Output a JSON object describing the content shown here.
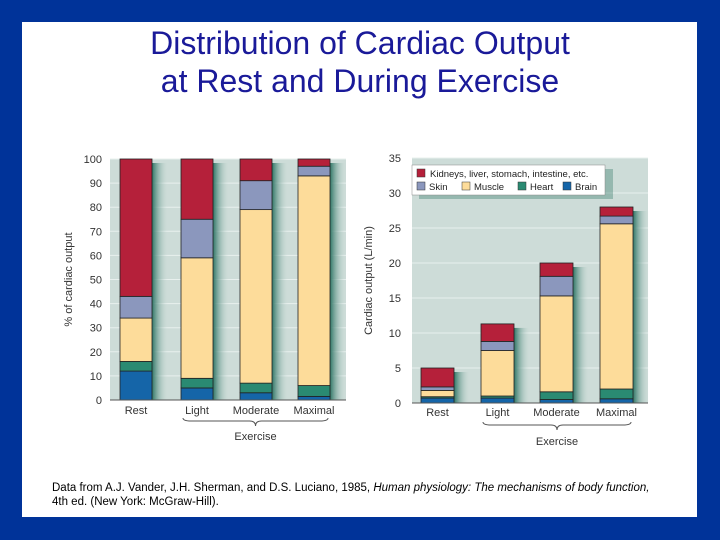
{
  "slide": {
    "title_line1": "Distribution of Cardiac Output",
    "title_line2": "at Rest and During Exercise",
    "caption_plain1": "Data from A.J. Vander, J.H. Sherman, and D.S. Luciano, 1985, ",
    "caption_italic1": "Human physiology: The mechanisms of body function,",
    "caption_plain2": " 4th ed. (New York: McGraw-Hill).",
    "border_color": "#003399",
    "title_color": "#1a1a99"
  },
  "chart_data": [
    {
      "type": "bar",
      "stacked": true,
      "ylabel": "% of cardiac output",
      "ylim": [
        0,
        100
      ],
      "yticks": [
        0,
        10,
        20,
        30,
        40,
        50,
        60,
        70,
        80,
        90,
        100
      ],
      "categories": [
        "Rest",
        "Light",
        "Moderate",
        "Maximal"
      ],
      "group_label": "Exercise",
      "series": [
        {
          "name": "Brain",
          "color": "#1565a8",
          "values": [
            12,
            5,
            3,
            1.5
          ]
        },
        {
          "name": "Heart",
          "color": "#2a8a72",
          "values": [
            4,
            4,
            4,
            4.5
          ]
        },
        {
          "name": "Muscle",
          "color": "#fddc9a",
          "values": [
            18,
            50,
            72,
            87
          ]
        },
        {
          "name": "Skin",
          "color": "#8b97bd",
          "values": [
            9,
            16,
            12,
            4
          ]
        },
        {
          "name": "Kidneys, liver, stomach, intestine, etc.",
          "color": "#b5203a",
          "values": [
            57,
            25,
            9,
            3
          ]
        }
      ]
    },
    {
      "type": "bar",
      "stacked": true,
      "ylabel": "Cardiac output (L/min)",
      "ylim": [
        0,
        35
      ],
      "yticks": [
        0,
        5,
        10,
        15,
        20,
        25,
        30,
        35
      ],
      "categories": [
        "Rest",
        "Light",
        "Moderate",
        "Maximal"
      ],
      "group_label": "Exercise",
      "legend": "top-left",
      "series": [
        {
          "name": "Brain",
          "color": "#1565a8",
          "values": [
            0.7,
            0.7,
            0.5,
            0.6
          ]
        },
        {
          "name": "Heart",
          "color": "#2a8a72",
          "values": [
            0.2,
            0.3,
            1.1,
            1.4
          ]
        },
        {
          "name": "Muscle",
          "color": "#fddc9a",
          "values": [
            0.9,
            6.5,
            13.7,
            23.6
          ]
        },
        {
          "name": "Skin",
          "color": "#8b97bd",
          "values": [
            0.5,
            1.3,
            2.8,
            1.1
          ]
        },
        {
          "name": "Kidneys, liver, stomach, intestine, etc.",
          "color": "#b5203a",
          "values": [
            2.7,
            2.5,
            1.9,
            1.3
          ]
        }
      ]
    }
  ]
}
